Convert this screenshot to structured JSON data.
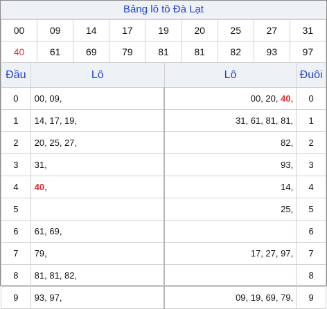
{
  "title": "Bảng lô tô Đà Lạt",
  "numbers": {
    "row1": [
      "00",
      "09",
      "14",
      "17",
      "19",
      "20",
      "25",
      "27",
      "31"
    ],
    "row2": [
      "40",
      "61",
      "69",
      "79",
      "81",
      "81",
      "82",
      "93",
      "97"
    ]
  },
  "headers": {
    "dau": "Đầu",
    "lo_left": "Lô",
    "lo_right": "Lô",
    "duoi": "Đuôi"
  },
  "rows": [
    {
      "dau": "0",
      "left": "00, 09,",
      "left_hl": "",
      "right_pre": "00, 20, ",
      "right_hl": "40",
      "right_post": ",",
      "duoi": "0"
    },
    {
      "dau": "1",
      "left": "14, 17, 19,",
      "left_hl": "",
      "right_pre": "31, 61, 81, 81,",
      "right_hl": "",
      "right_post": "",
      "duoi": "1"
    },
    {
      "dau": "2",
      "left": "20, 25, 27,",
      "left_hl": "",
      "right_pre": "82,",
      "right_hl": "",
      "right_post": "",
      "duoi": "2"
    },
    {
      "dau": "3",
      "left": "31,",
      "left_hl": "",
      "right_pre": "93,",
      "right_hl": "",
      "right_post": "",
      "duoi": "3"
    },
    {
      "dau": "4",
      "left": "",
      "left_hl": "40",
      "left_post": ",",
      "right_pre": "14,",
      "right_hl": "",
      "right_post": "",
      "duoi": "4"
    },
    {
      "dau": "5",
      "left": "",
      "left_hl": "",
      "right_pre": "25,",
      "right_hl": "",
      "right_post": "",
      "duoi": "5"
    },
    {
      "dau": "6",
      "left": "61, 69,",
      "left_hl": "",
      "right_pre": "",
      "right_hl": "",
      "right_post": "",
      "duoi": "6"
    },
    {
      "dau": "7",
      "left": "79,",
      "left_hl": "",
      "right_pre": "17, 27, 97,",
      "right_hl": "",
      "right_post": "",
      "duoi": "7"
    },
    {
      "dau": "8",
      "left": "81, 81, 82,",
      "left_hl": "",
      "right_pre": "",
      "right_hl": "",
      "right_post": "",
      "duoi": "8"
    },
    {
      "dau": "9",
      "left": "93, 97,",
      "left_hl": "",
      "right_pre": "09, 19, 69, 79,",
      "right_hl": "",
      "right_post": "",
      "duoi": "9"
    }
  ],
  "colors": {
    "accent_blue": "#1f3fd6",
    "highlight_red": "#e03030",
    "header_bg": "#eef2f7"
  }
}
